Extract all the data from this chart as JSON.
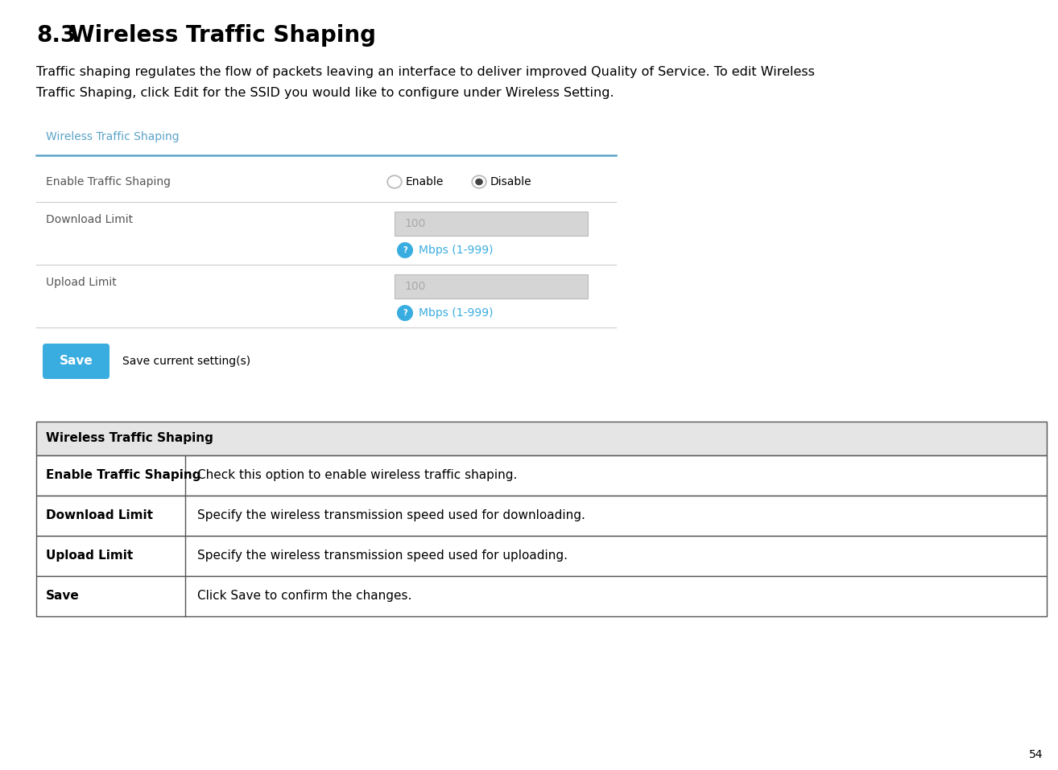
{
  "page_number": "54",
  "section_number": "8.3",
  "section_title": "  Wireless Traffic Shaping",
  "description_line1": "Traffic shaping regulates the flow of packets leaving an interface to deliver improved Quality of Service. To edit Wireless",
  "description_line2": "Traffic Shaping, click Edit for the SSID you would like to configure under Wireless Setting.",
  "form_title": "Wireless Traffic Shaping",
  "form_title_color": "#5ba3c9",
  "form_line_color": "#5ba3c9",
  "save_button_text": "Save",
  "save_button_color": "#3aade0",
  "save_caption": "Save current setting(s)",
  "table_header": "Wireless Traffic Shaping",
  "table_header_bg": "#e5e5e5",
  "table_border_color": "#555555",
  "table_rows": [
    {
      "term": "Enable Traffic Shaping",
      "definition": "Check this option to enable wireless traffic shaping."
    },
    {
      "term": "Download Limit",
      "definition": "Specify the wireless transmission speed used for downloading."
    },
    {
      "term": "Upload Limit",
      "definition": "Specify the wireless transmission speed used for uploading."
    },
    {
      "term": "Save",
      "definition": "Click Save to confirm the changes."
    }
  ],
  "bg_color": "#ffffff",
  "text_color": "#000000",
  "label_color": "#555555",
  "input_bg": "#d5d5d5",
  "input_text_color": "#aaaaaa",
  "radio_color_selected": "#444444",
  "radio_color_unselected": "#bbbbbb",
  "help_icon_color": "#3aade0",
  "mbps_color": "#3aade0",
  "sep_color": "#cccccc"
}
